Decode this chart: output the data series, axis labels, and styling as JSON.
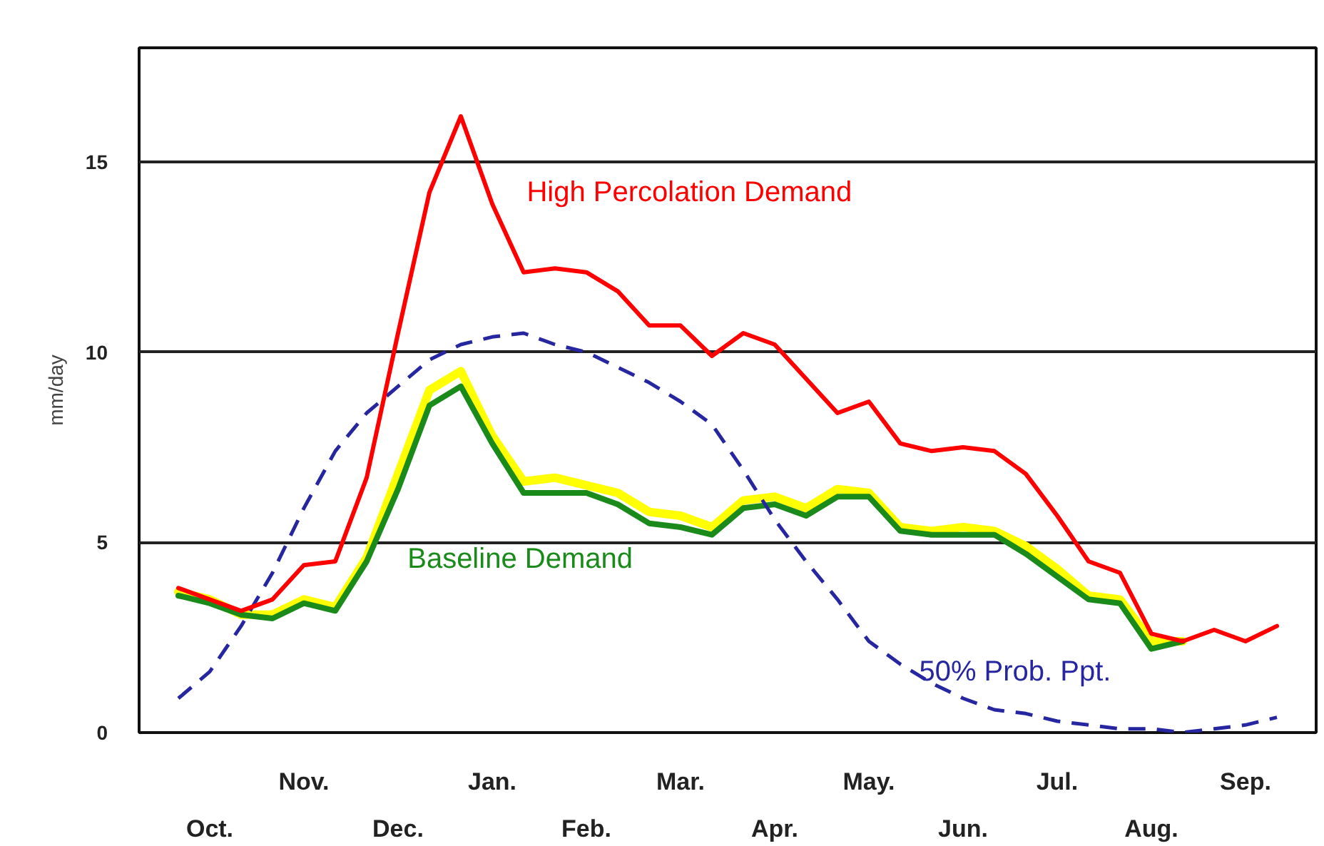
{
  "chart_data": {
    "type": "line",
    "ylabel": "mm/day",
    "categories": [
      null,
      "Oct.",
      null,
      null,
      "Nov.",
      null,
      null,
      "Dec.",
      null,
      null,
      "Jan.",
      null,
      null,
      "Feb.",
      null,
      null,
      "Mar.",
      null,
      null,
      "Apr.",
      null,
      null,
      "May.",
      null,
      null,
      "Jun.",
      null,
      null,
      "Jul.",
      null,
      null,
      "Aug.",
      null,
      null,
      "Sep.",
      null
    ],
    "ylim": [
      0,
      18
    ],
    "yticks": [
      0,
      5,
      10,
      15
    ],
    "grid": "y",
    "line_style": "solid",
    "series": [
      {
        "color": "#ffff00",
        "values": [
          3.7,
          3.5,
          3.1,
          3.1,
          3.5,
          3.3,
          4.6,
          6.8,
          9.0,
          9.5,
          7.8,
          6.6,
          6.7,
          6.5,
          6.3,
          5.8,
          5.7,
          5.4,
          6.1,
          6.2,
          5.9,
          6.4,
          6.3,
          5.4,
          5.3,
          5.4,
          5.3,
          4.9,
          4.3,
          3.6,
          3.5,
          2.4,
          2.4,
          null,
          null,
          null
        ]
      },
      {
        "name": "Baseline Demand",
        "color": "#1a8a1a",
        "values": [
          3.6,
          3.4,
          3.1,
          3.0,
          3.4,
          3.2,
          4.5,
          6.4,
          8.6,
          9.1,
          7.6,
          6.3,
          6.3,
          6.3,
          6.0,
          5.5,
          5.4,
          5.2,
          5.9,
          6.0,
          5.7,
          6.2,
          6.2,
          5.3,
          5.2,
          5.2,
          5.2,
          4.7,
          4.1,
          3.5,
          3.4,
          2.2,
          2.4,
          null,
          null,
          null
        ]
      },
      {
        "name": "50% Prob. Ppt.",
        "color": "#2626a0",
        "line_style": "dashed",
        "values": [
          0.9,
          1.6,
          2.8,
          4.2,
          5.9,
          7.4,
          8.4,
          9.1,
          9.8,
          10.2,
          10.4,
          10.5,
          10.2,
          10.0,
          9.6,
          9.2,
          8.7,
          8.1,
          6.9,
          5.6,
          4.5,
          3.5,
          2.4,
          1.8,
          1.3,
          0.9,
          0.6,
          0.5,
          0.3,
          0.2,
          0.1,
          0.1,
          0.0,
          0.1,
          0.2,
          0.4
        ]
      },
      {
        "name": "High Percolation Demand",
        "color": "#ff0000",
        "values": [
          3.8,
          3.5,
          3.2,
          3.5,
          4.4,
          4.5,
          6.7,
          10.5,
          14.2,
          16.2,
          13.9,
          12.1,
          12.2,
          12.1,
          11.6,
          10.7,
          10.7,
          9.9,
          10.5,
          10.2,
          9.3,
          8.4,
          8.7,
          7.6,
          7.4,
          7.5,
          7.4,
          6.8,
          5.7,
          4.5,
          4.2,
          2.6,
          2.4,
          2.7,
          2.4,
          2.8
        ]
      }
    ]
  }
}
